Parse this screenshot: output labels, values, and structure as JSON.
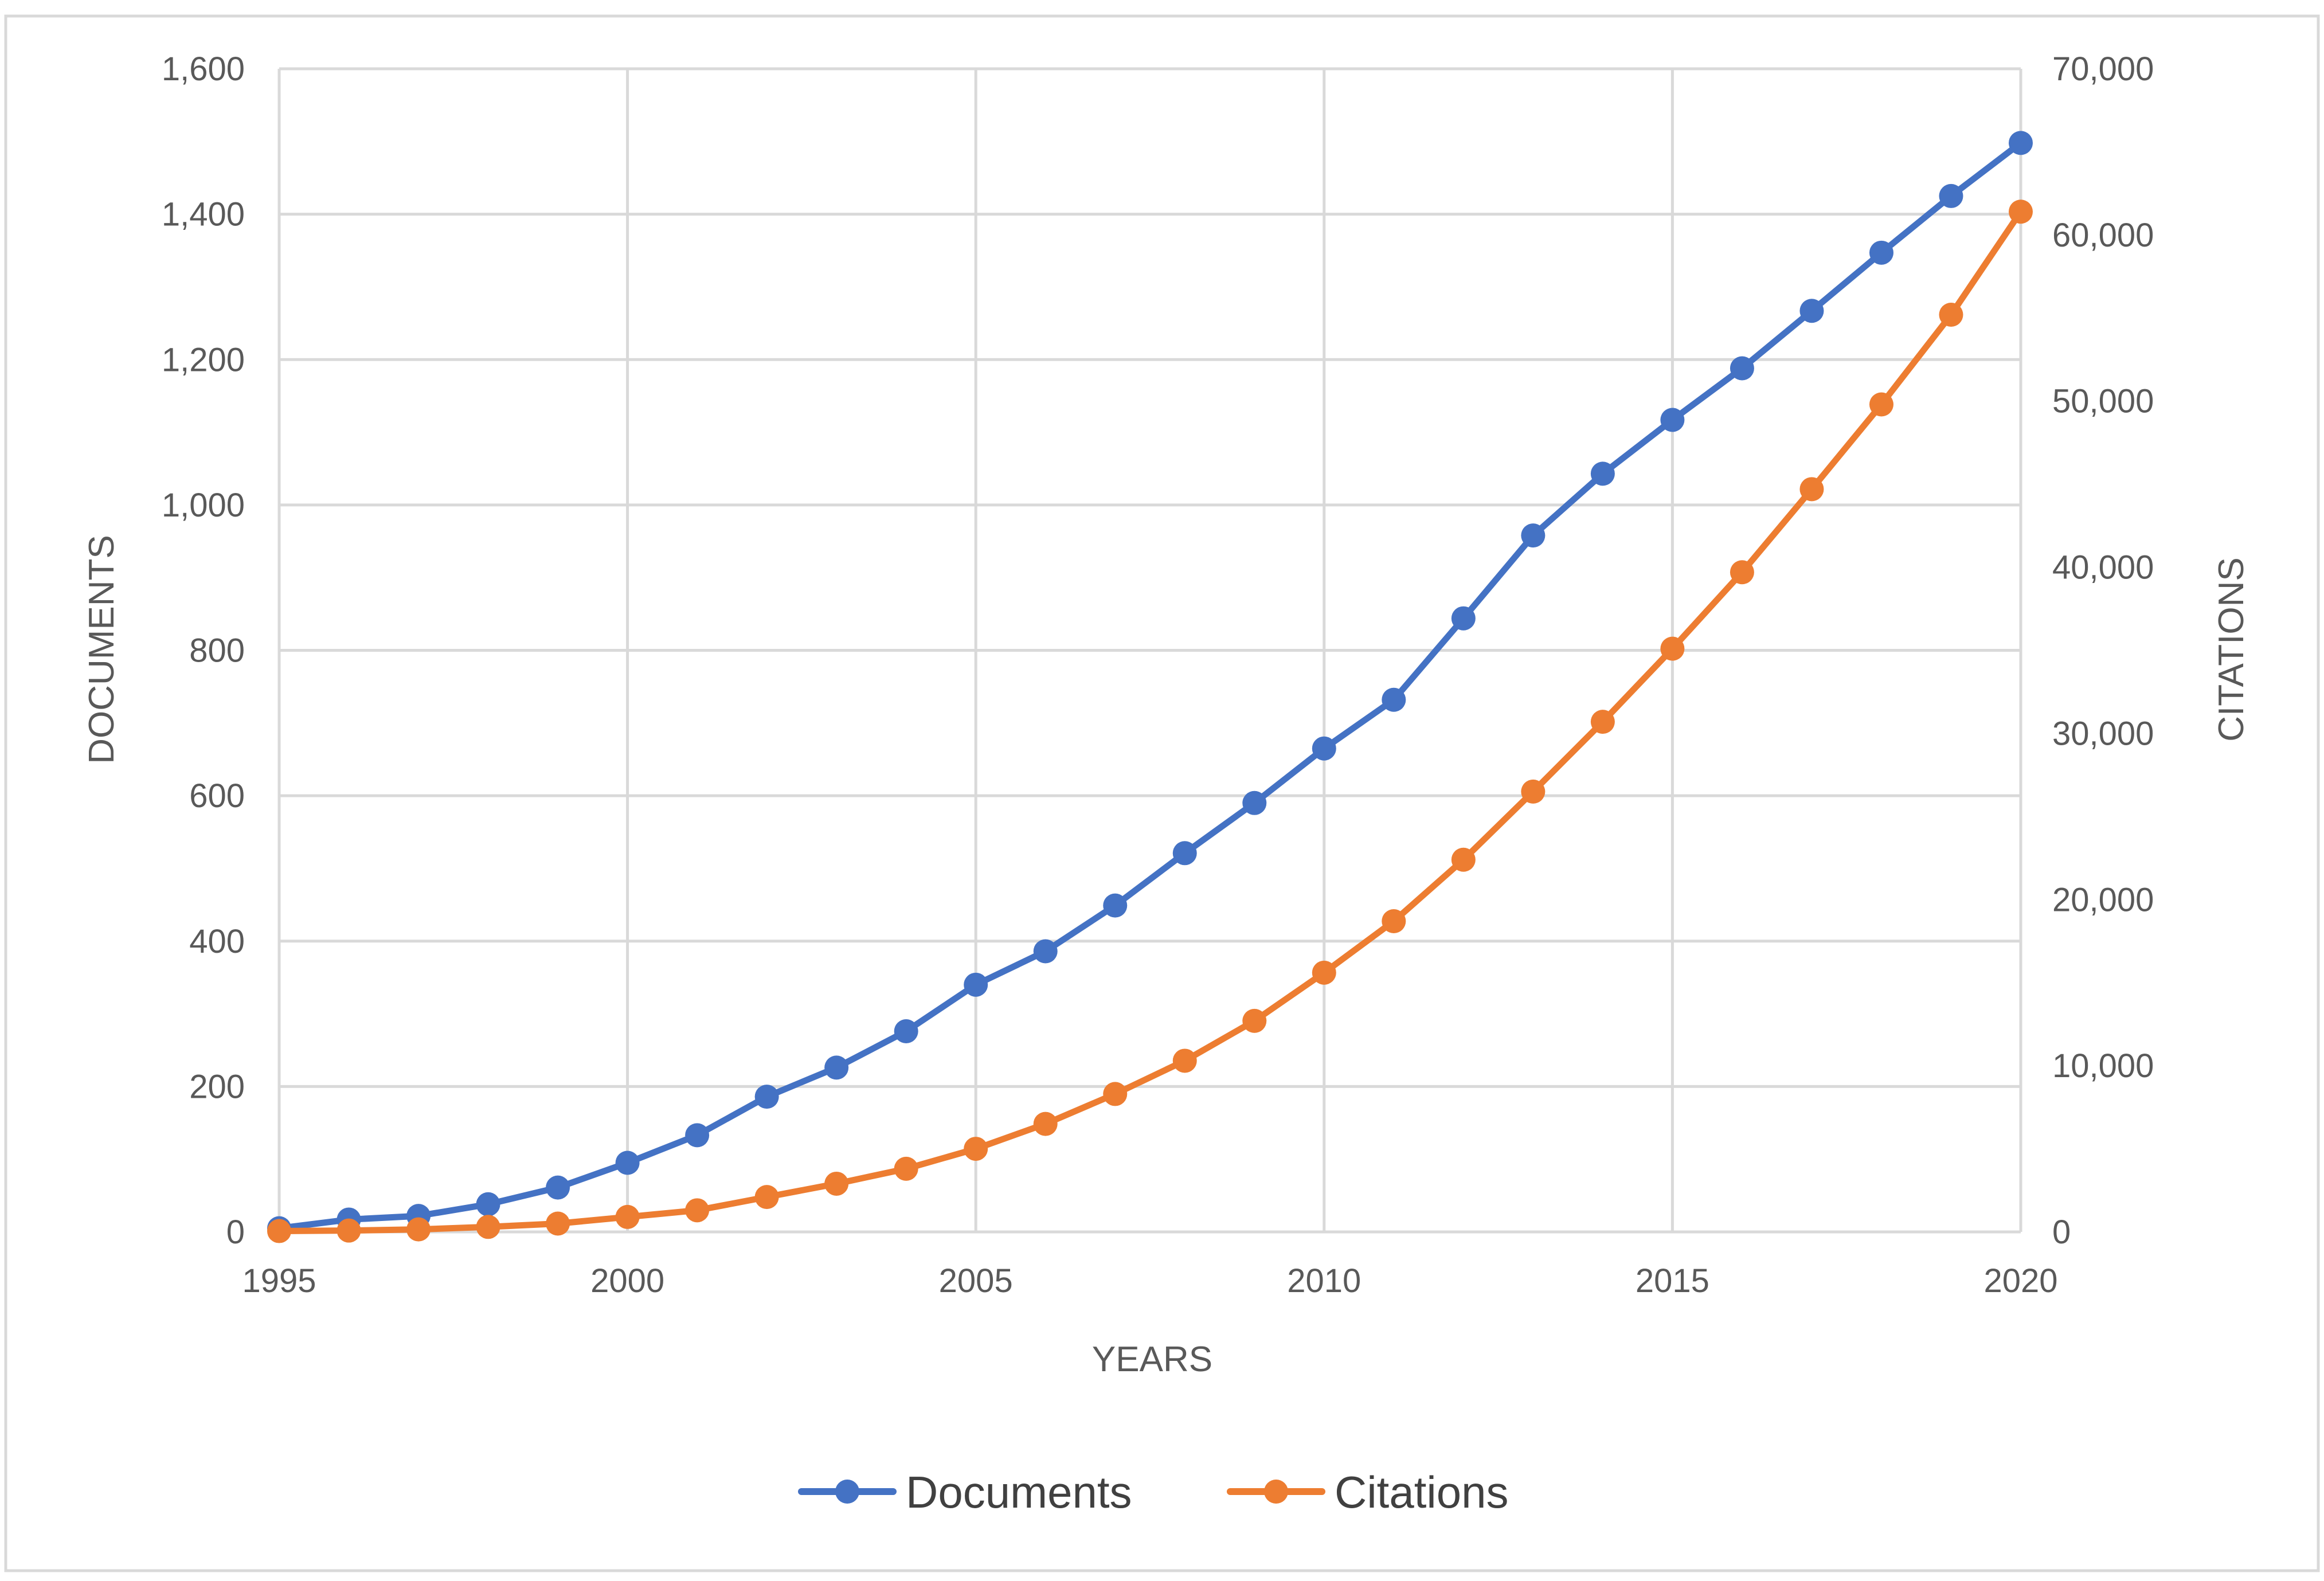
{
  "chart_data": {
    "type": "line",
    "title": "",
    "xlabel": "YEARS",
    "ylabel": "DOCUMENTS",
    "y2label": "CITATIONS",
    "xlim": [
      1995,
      2020
    ],
    "ylim": [
      0,
      1600
    ],
    "y2lim": [
      0,
      70000
    ],
    "x_ticks": [
      1995,
      2000,
      2005,
      2010,
      2015,
      2020
    ],
    "x_tick_labels": [
      "1995",
      "2000",
      "2005",
      "2010",
      "2015",
      "2020"
    ],
    "y_ticks": [
      0,
      200,
      400,
      600,
      800,
      1000,
      1200,
      1400,
      1600
    ],
    "y_tick_labels": [
      "0",
      "200",
      "400",
      "600",
      "800",
      "1,000",
      "1,200",
      "1,400",
      "1,600"
    ],
    "y2_ticks": [
      0,
      10000,
      20000,
      30000,
      40000,
      50000,
      60000,
      70000
    ],
    "y2_tick_labels": [
      "0",
      "10,000",
      "20,000",
      "30,000",
      "40,000",
      "50,000",
      "60,000",
      "70,000"
    ],
    "grid": true,
    "legend_position": "bottom",
    "x": [
      1995,
      1996,
      1997,
      1998,
      1999,
      2000,
      2001,
      2002,
      2003,
      2004,
      2005,
      2006,
      2007,
      2008,
      2009,
      2010,
      2011,
      2012,
      2013,
      2014,
      2015,
      2016,
      2017,
      2018,
      2019,
      2020
    ],
    "series": [
      {
        "name": "Documents",
        "axis": "left",
        "color": "#4472C4",
        "values": [
          5,
          17,
          22,
          38,
          61,
          95,
          133,
          186,
          226,
          276,
          340,
          386,
          449,
          521,
          590,
          665,
          732,
          844,
          958,
          1043,
          1117,
          1188,
          1267,
          1347,
          1425,
          1498
        ]
      },
      {
        "name": "Citations",
        "axis": "right",
        "color": "#ED7D31",
        "values": [
          50,
          80,
          150,
          300,
          500,
          900,
          1300,
          2100,
          2900,
          3800,
          5000,
          6500,
          8300,
          10300,
          12700,
          15600,
          18700,
          22400,
          26500,
          30700,
          35100,
          39700,
          44700,
          49800,
          55200,
          61400
        ]
      }
    ]
  }
}
